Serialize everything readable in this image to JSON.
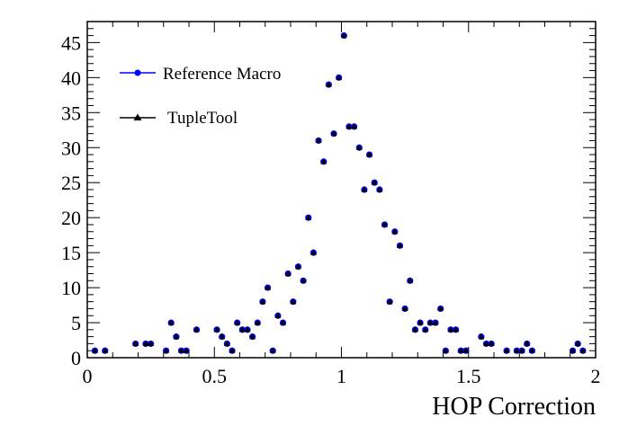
{
  "chart_data": {
    "type": "scatter",
    "title": "",
    "xlabel": "HOP Correction",
    "ylabel": "",
    "xlim": [
      0,
      2
    ],
    "ylim": [
      0,
      48
    ],
    "x_ticks": [
      "0",
      "0.5",
      "1",
      "1.5",
      "2"
    ],
    "y_ticks": [
      "0",
      "5",
      "10",
      "15",
      "20",
      "25",
      "30",
      "35",
      "40",
      "45"
    ],
    "legend_position": "top-left",
    "grid": false,
    "series": [
      {
        "name": "Reference Macro",
        "color": "#0000ff",
        "marker": "circle",
        "x": [
          0.03,
          0.07,
          0.19,
          0.23,
          0.25,
          0.31,
          0.33,
          0.35,
          0.37,
          0.39,
          0.43,
          0.51,
          0.53,
          0.55,
          0.57,
          0.59,
          0.61,
          0.63,
          0.65,
          0.67,
          0.69,
          0.71,
          0.73,
          0.75,
          0.77,
          0.79,
          0.81,
          0.83,
          0.85,
          0.87,
          0.89,
          0.91,
          0.93,
          0.95,
          0.97,
          0.99,
          1.01,
          1.03,
          1.05,
          1.07,
          1.09,
          1.11,
          1.13,
          1.15,
          1.17,
          1.19,
          1.21,
          1.23,
          1.25,
          1.27,
          1.29,
          1.31,
          1.33,
          1.35,
          1.37,
          1.39,
          1.41,
          1.43,
          1.45,
          1.47,
          1.49,
          1.55,
          1.57,
          1.59,
          1.65,
          1.69,
          1.71,
          1.73,
          1.75,
          1.91,
          1.93,
          1.95
        ],
        "y": [
          1,
          1,
          2,
          2,
          2,
          1,
          5,
          3,
          1,
          1,
          4,
          4,
          3,
          2,
          1,
          5,
          4,
          4,
          3,
          5,
          8,
          10,
          1,
          6,
          5,
          12,
          8,
          13,
          11,
          20,
          15,
          31,
          28,
          39,
          32,
          40,
          46,
          33,
          33,
          30,
          24,
          29,
          25,
          24,
          19,
          8,
          18,
          16,
          7,
          11,
          4,
          5,
          4,
          5,
          5,
          7,
          1,
          4,
          4,
          1,
          1,
          3,
          2,
          2,
          1,
          1,
          1,
          2,
          1,
          1,
          2,
          1
        ]
      },
      {
        "name": "TupleTool",
        "color": "#000000",
        "marker": "triangle",
        "x": [
          0.03,
          0.07,
          0.19,
          0.23,
          0.25,
          0.31,
          0.33,
          0.35,
          0.37,
          0.39,
          0.43,
          0.51,
          0.53,
          0.55,
          0.57,
          0.59,
          0.61,
          0.63,
          0.65,
          0.67,
          0.69,
          0.71,
          0.73,
          0.75,
          0.77,
          0.79,
          0.81,
          0.83,
          0.85,
          0.87,
          0.89,
          0.91,
          0.93,
          0.95,
          0.97,
          0.99,
          1.01,
          1.03,
          1.05,
          1.07,
          1.09,
          1.11,
          1.13,
          1.15,
          1.17,
          1.19,
          1.21,
          1.23,
          1.25,
          1.27,
          1.29,
          1.31,
          1.33,
          1.35,
          1.37,
          1.39,
          1.41,
          1.43,
          1.45,
          1.47,
          1.49,
          1.55,
          1.57,
          1.59,
          1.65,
          1.69,
          1.71,
          1.73,
          1.75,
          1.91,
          1.93,
          1.95
        ],
        "y": [
          1,
          1,
          2,
          2,
          2,
          1,
          5,
          3,
          1,
          1,
          4,
          4,
          3,
          2,
          1,
          5,
          4,
          4,
          3,
          5,
          8,
          10,
          1,
          6,
          5,
          12,
          8,
          13,
          11,
          20,
          15,
          31,
          28,
          39,
          32,
          40,
          46,
          33,
          33,
          30,
          24,
          29,
          25,
          24,
          19,
          8,
          18,
          16,
          7,
          11,
          4,
          5,
          4,
          5,
          5,
          7,
          1,
          4,
          4,
          1,
          1,
          3,
          2,
          2,
          1,
          1,
          1,
          2,
          1,
          1,
          2,
          1
        ]
      }
    ]
  }
}
